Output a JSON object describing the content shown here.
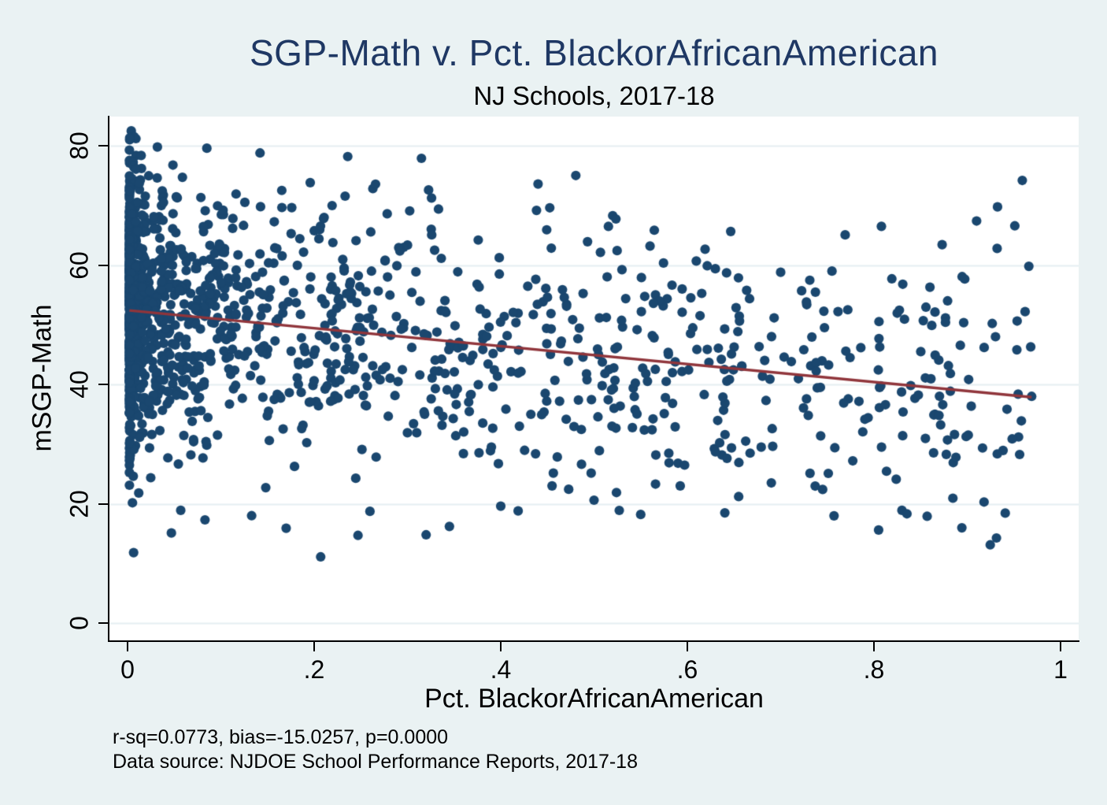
{
  "chart_data": {
    "type": "scatter",
    "title": "SGP-Math v. Pct. BlackorAfricanAmerican",
    "subtitle": "NJ Schools, 2017-18",
    "xlabel": "Pct. BlackorAfricanAmerican",
    "ylabel": "mSGP-Math",
    "xlim": [
      -0.0194,
      1.0194
    ],
    "ylim": [
      -2.9,
      84.9
    ],
    "x_ticks": [
      {
        "v": 0.0,
        "label": "0"
      },
      {
        "v": 0.2,
        "label": ".2"
      },
      {
        "v": 0.4,
        "label": ".4"
      },
      {
        "v": 0.6,
        "label": ".6"
      },
      {
        "v": 0.8,
        "label": ".8"
      },
      {
        "v": 1.0,
        "label": "1"
      }
    ],
    "y_ticks": [
      {
        "v": 0,
        "label": "0"
      },
      {
        "v": 20,
        "label": "20"
      },
      {
        "v": 40,
        "label": "40"
      },
      {
        "v": 60,
        "label": "60"
      },
      {
        "v": 80,
        "label": "80"
      }
    ],
    "grid": {
      "horizontal": true,
      "vertical": false
    },
    "marker": {
      "color": "#1a476f",
      "radius": 6.1
    },
    "fit_line": {
      "color": "#90353b",
      "width": 3.4,
      "intercept": 52.43,
      "slope": -15.0257,
      "x_start": 0.002,
      "x_end": 0.969
    },
    "stats": {
      "r_sq": "0.0773",
      "bias": "-15.0257",
      "p": "0.0000"
    },
    "notes": [
      "r-sq=0.0773, bias=-15.0257, p=0.0000",
      "Data source: NJDOE School Performance Reports, 2017-18"
    ],
    "anchor_points": [
      [
        0.004,
        82.5
      ],
      [
        0.009,
        81.2
      ],
      [
        0.032,
        79.8
      ],
      [
        0.085,
        79.6
      ],
      [
        0.142,
        78.8
      ],
      [
        0.236,
        78.2
      ],
      [
        0.315,
        77.9
      ],
      [
        0.44,
        73.6
      ],
      [
        0.52,
        68.3
      ],
      [
        0.56,
        63.2
      ],
      [
        0.63,
        59.4
      ],
      [
        0.7,
        58.8
      ],
      [
        0.755,
        59.0
      ],
      [
        0.808,
        66.5
      ],
      [
        0.86,
        56.3
      ],
      [
        0.91,
        67.4
      ],
      [
        0.932,
        62.8
      ],
      [
        0.959,
        74.2
      ],
      [
        0.966,
        59.8
      ],
      [
        0.962,
        52.2
      ],
      [
        0.968,
        46.3
      ],
      [
        0.969,
        38.0
      ],
      [
        0.958,
        33.9
      ],
      [
        0.955,
        31.2
      ],
      [
        0.918,
        20.3
      ],
      [
        0.885,
        26.9
      ],
      [
        0.857,
        17.9
      ],
      [
        0.805,
        15.6
      ],
      [
        0.83,
        18.9
      ],
      [
        0.745,
        22.4
      ],
      [
        0.69,
        23.5
      ],
      [
        0.655,
        21.2
      ],
      [
        0.59,
        26.8
      ],
      [
        0.55,
        18.2
      ],
      [
        0.5,
        20.6
      ],
      [
        0.455,
        23.0
      ],
      [
        0.4,
        19.6
      ],
      [
        0.345,
        16.2
      ],
      [
        0.32,
        14.8
      ],
      [
        0.247,
        14.7
      ],
      [
        0.207,
        11.1
      ],
      [
        0.17,
        15.9
      ],
      [
        0.133,
        18.0
      ],
      [
        0.083,
        17.3
      ],
      [
        0.057,
        18.9
      ],
      [
        0.047,
        15.1
      ],
      [
        0.012,
        21.8
      ],
      [
        0.3,
        31.9
      ],
      [
        0.36,
        28.4
      ],
      [
        0.42,
        33.0
      ]
    ],
    "point_cloud": {
      "seed": 201718,
      "n": 1560,
      "x_min": 0.002,
      "x_scale": 0.968,
      "x_power": 4.0,
      "y_sd": 10.8,
      "y_clip": [
        11.0,
        82.6
      ]
    }
  },
  "colors": {
    "background": "#eaf2f3",
    "plot_background": "#ffffff",
    "grid": "#e5eef2",
    "axis": "#000000",
    "title": "#1f3864",
    "text": "#000000"
  }
}
